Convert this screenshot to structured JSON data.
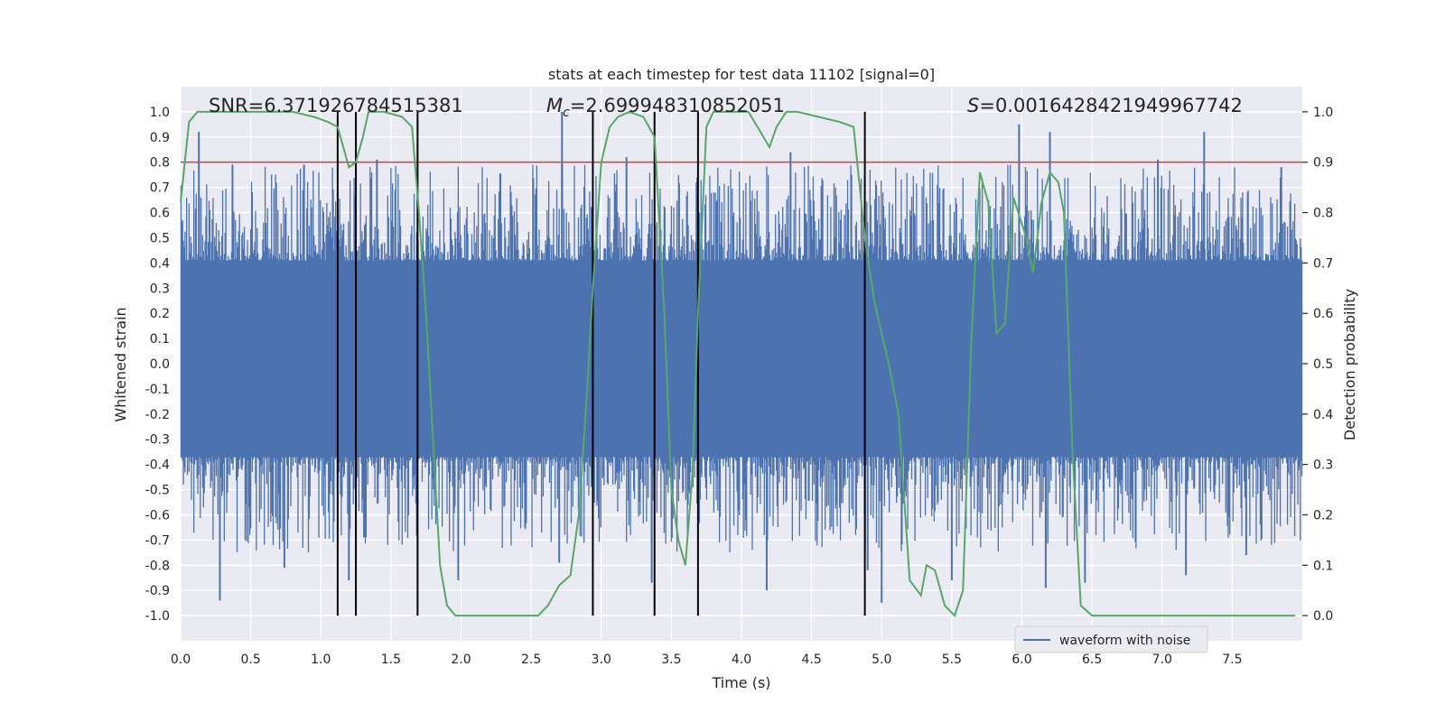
{
  "chart_data": {
    "type": "line",
    "title": "stats at each timestep for test data 11102 [signal=0]",
    "xlabel": "Time (s)",
    "ylabel": "Whitened strain",
    "y2label": "Detection probability",
    "xlim": [
      0.0,
      8.0
    ],
    "ylim": [
      -1.1,
      1.1
    ],
    "y2lim": [
      -0.05,
      1.05
    ],
    "xticks": [
      "0.0",
      "0.5",
      "1.0",
      "1.5",
      "2.0",
      "2.5",
      "3.0",
      "3.5",
      "4.0",
      "4.5",
      "5.0",
      "5.5",
      "6.0",
      "6.5",
      "7.0",
      "7.5"
    ],
    "yticks": [
      "1.0",
      "0.9",
      "0.8",
      "0.7",
      "0.6",
      "0.5",
      "0.4",
      "0.3",
      "0.2",
      "0.1",
      "0.0",
      "-0.1",
      "-0.2",
      "-0.3",
      "-0.4",
      "-0.5",
      "-0.6",
      "-0.7",
      "-0.8",
      "-0.9",
      "-1.0"
    ],
    "y2ticks": [
      "1.0",
      "0.9",
      "0.8",
      "0.7",
      "0.6",
      "0.5",
      "0.4",
      "0.3",
      "0.2",
      "0.1",
      "0.0"
    ],
    "annotations": {
      "snr": "SNR=6.371926784515381",
      "mc_symbol": "M",
      "mc_sub": "c",
      "mc_value": "=2.699948310852051",
      "s_symbol": "S",
      "s_value": "=0.0016428421949967742"
    },
    "legend": {
      "label": "waveform with noise",
      "position": "lower-right"
    },
    "threshold": {
      "y2": 0.9,
      "color": "#c44e52"
    },
    "vertical_lines_x": [
      1.12,
      1.25,
      1.69,
      2.94,
      3.38,
      3.69,
      4.88
    ],
    "waveform": {
      "name": "waveform with noise",
      "color": "#4c72b0",
      "core_band": [
        -0.37,
        0.41
      ],
      "n_samples": 8192,
      "spikes": [
        [
          0.13,
          0.92
        ],
        [
          0.28,
          -0.94
        ],
        [
          0.37,
          0.79
        ],
        [
          0.74,
          -0.81
        ],
        [
          0.88,
          0.79
        ],
        [
          1.2,
          -0.86
        ],
        [
          1.4,
          0.81
        ],
        [
          1.98,
          -0.86
        ],
        [
          2.72,
          0.79
        ],
        [
          2.7,
          -0.79
        ],
        [
          2.72,
          1.0
        ],
        [
          3.18,
          0.82
        ],
        [
          3.36,
          -0.87
        ],
        [
          4.18,
          -0.9
        ],
        [
          4.35,
          0.84
        ],
        [
          4.9,
          -0.82
        ],
        [
          5.0,
          -0.95
        ],
        [
          5.5,
          -0.86
        ],
        [
          5.98,
          0.95
        ],
        [
          6.2,
          0.92
        ],
        [
          6.17,
          -0.89
        ],
        [
          6.45,
          -0.87
        ],
        [
          6.97,
          0.81
        ],
        [
          7.17,
          -0.84
        ],
        [
          7.3,
          0.92
        ],
        [
          7.6,
          -0.76
        ],
        [
          7.85,
          0.78
        ]
      ]
    },
    "probability": {
      "name": "detection probability",
      "color": "#55a868",
      "x": [
        0.0,
        0.06,
        0.12,
        0.5,
        0.8,
        0.95,
        1.05,
        1.12,
        1.2,
        1.25,
        1.3,
        1.34,
        1.45,
        1.58,
        1.65,
        1.7,
        1.75,
        1.8,
        1.85,
        1.9,
        1.96,
        2.05,
        2.3,
        2.55,
        2.62,
        2.7,
        2.78,
        2.84,
        2.9,
        2.94,
        3.0,
        3.06,
        3.12,
        3.2,
        3.3,
        3.38,
        3.45,
        3.5,
        3.55,
        3.6,
        3.65,
        3.69,
        3.75,
        3.8,
        3.85,
        4.05,
        4.2,
        4.25,
        4.32,
        4.4,
        4.55,
        4.7,
        4.8,
        4.88,
        4.95,
        5.05,
        5.12,
        5.2,
        5.28,
        5.32,
        5.38,
        5.45,
        5.52,
        5.58,
        5.64,
        5.7,
        5.76,
        5.82,
        5.88,
        5.94,
        6.02,
        6.08,
        6.14,
        6.2,
        6.26,
        6.3,
        6.36,
        6.42,
        6.5,
        6.6,
        7.0,
        7.5,
        7.95
      ],
      "y": [
        0.82,
        0.98,
        1.0,
        1.0,
        1.0,
        0.99,
        0.98,
        0.97,
        0.89,
        0.9,
        0.95,
        1.0,
        1.0,
        0.99,
        0.97,
        0.8,
        0.6,
        0.35,
        0.1,
        0.02,
        0.0,
        0.0,
        0.0,
        0.0,
        0.02,
        0.06,
        0.08,
        0.2,
        0.45,
        0.65,
        0.9,
        0.97,
        0.99,
        1.0,
        0.99,
        0.95,
        0.6,
        0.25,
        0.15,
        0.1,
        0.28,
        0.6,
        0.97,
        1.0,
        1.0,
        1.0,
        0.93,
        0.97,
        1.0,
        1.0,
        0.99,
        0.98,
        0.97,
        0.75,
        0.62,
        0.5,
        0.4,
        0.07,
        0.04,
        0.1,
        0.09,
        0.02,
        0.0,
        0.05,
        0.55,
        0.88,
        0.82,
        0.56,
        0.58,
        0.83,
        0.76,
        0.68,
        0.82,
        0.88,
        0.86,
        0.8,
        0.33,
        0.02,
        0.0,
        0.0,
        0.0,
        0.0,
        0.0
      ]
    }
  }
}
